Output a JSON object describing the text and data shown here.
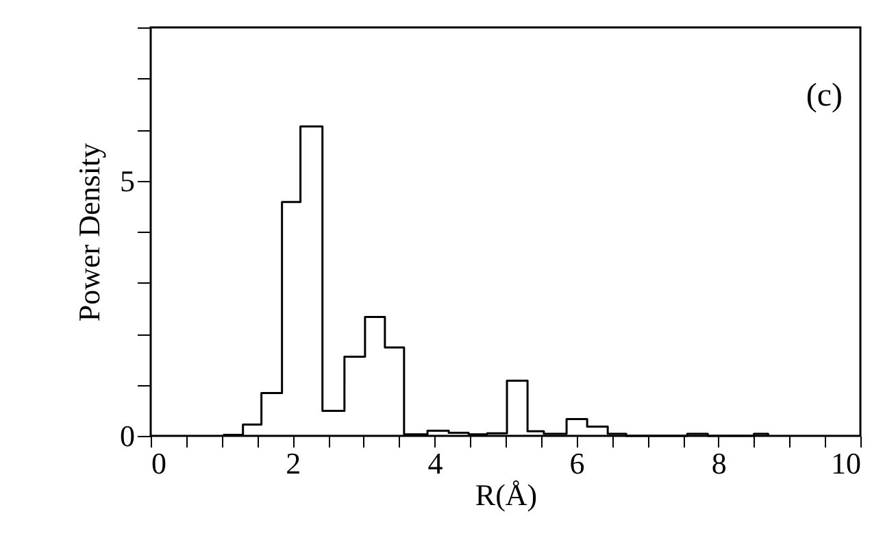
{
  "chart_data": {
    "type": "histogram",
    "bins": [
      1.03,
      1.3,
      1.56,
      1.85,
      2.11,
      2.42,
      2.73,
      3.02,
      3.3,
      3.57,
      3.9,
      4.2,
      4.48,
      4.74,
      5.02,
      5.31,
      5.54,
      5.86,
      6.15,
      6.44,
      6.7,
      7.56,
      7.85,
      8.5,
      8.7
    ],
    "values": [
      0.02,
      0.22,
      0.84,
      4.58,
      6.06,
      0.49,
      1.55,
      2.33,
      1.73,
      0.03,
      0.1,
      0.06,
      0.03,
      0.05,
      1.08,
      0.09,
      0.04,
      0.33,
      0.18,
      0.04,
      0,
      0.04,
      0,
      0.04
    ],
    "color": "#000000",
    "xlabel": "R(Å)",
    "ylabel": "Power Density",
    "annotations": [
      "(c)"
    ],
    "xlim": [
      0,
      10
    ],
    "ylim": [
      0,
      8
    ],
    "xticks": [
      0,
      {
        "value": 0.5,
        "label": null
      },
      {
        "value": 1,
        "label": null
      },
      {
        "value": 1.5,
        "label": null
      },
      2,
      {
        "value": 2.5,
        "label": null
      },
      {
        "value": 3,
        "label": null
      },
      {
        "value": 3.5,
        "label": null
      },
      4,
      {
        "value": 4.5,
        "label": null
      },
      {
        "value": 5,
        "label": null
      },
      {
        "value": 5.5,
        "label": null
      },
      6,
      {
        "value": 6.5,
        "label": null
      },
      {
        "value": 7,
        "label": null
      },
      {
        "value": 7.5,
        "label": null
      },
      8,
      {
        "value": 8.5,
        "label": null
      },
      {
        "value": 9,
        "label": null
      },
      {
        "value": 9.5,
        "label": null
      },
      10
    ],
    "yticks": [
      0,
      {
        "value": 1,
        "label": null
      },
      {
        "value": 2,
        "label": null
      },
      {
        "value": 3,
        "label": null
      },
      {
        "value": 4,
        "label": null
      },
      5,
      {
        "value": 6,
        "label": null
      },
      {
        "value": 7,
        "label": null
      },
      {
        "value": 8,
        "label": null
      }
    ],
    "grid": false
  }
}
